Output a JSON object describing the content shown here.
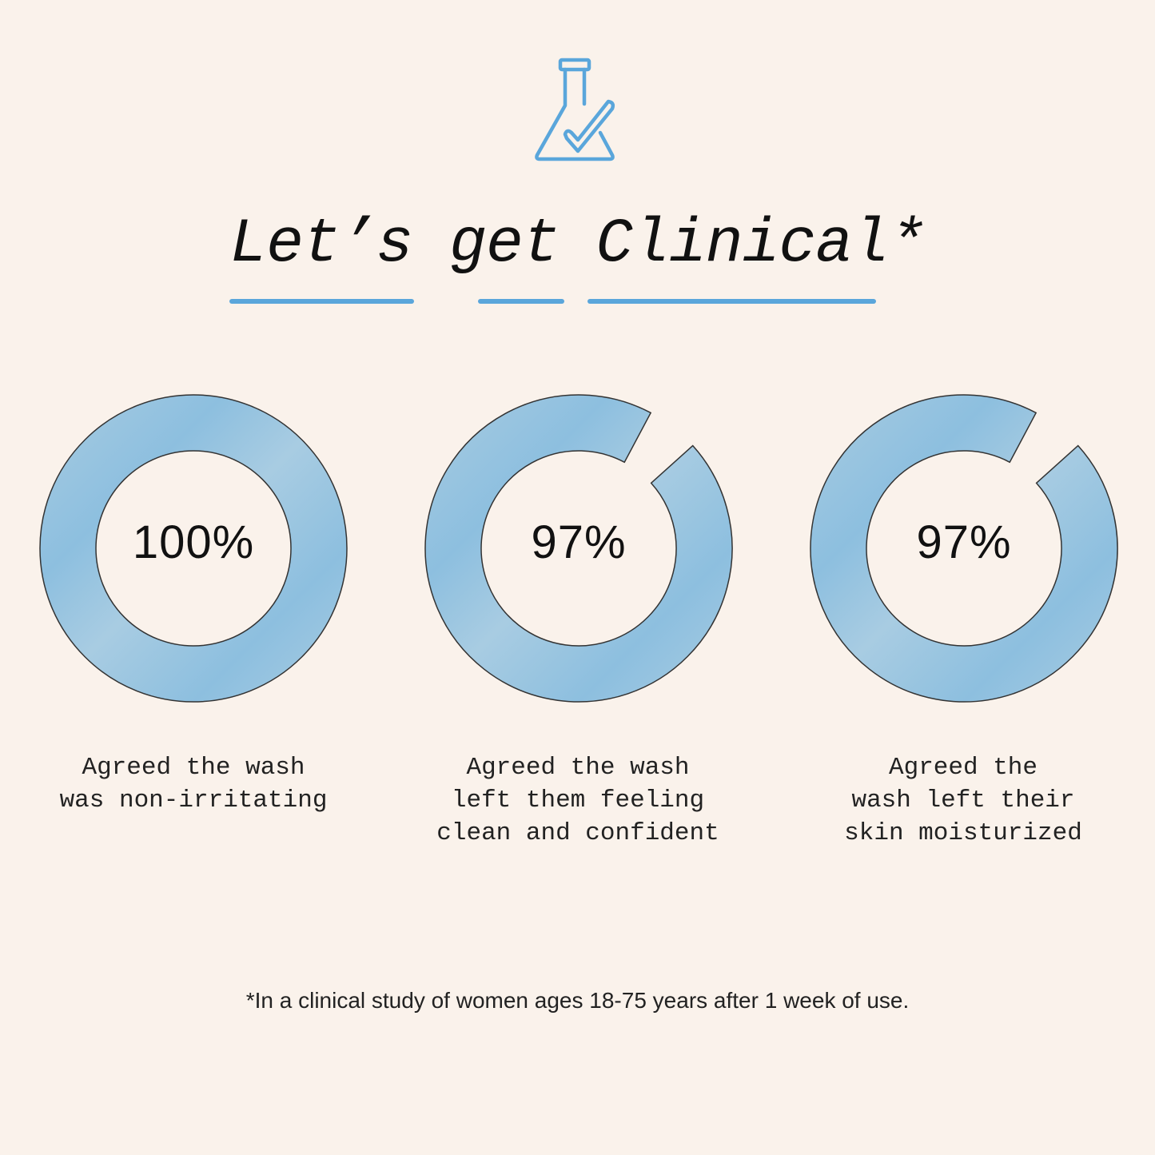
{
  "header": {
    "icon": "beaker-check-icon",
    "title": "Let’s get Clinical*"
  },
  "colors": {
    "background": "#faf2eb",
    "accent": "#5aa6db",
    "ring": "#a8cce2",
    "ring_dark": "#8dbfdf",
    "outline": "#333333"
  },
  "chart_data": [
    {
      "type": "pie",
      "style": "donut",
      "value": 100,
      "value_label": "100%",
      "caption": "Agreed the wash\nwas non-irritating"
    },
    {
      "type": "pie",
      "style": "donut",
      "value": 97,
      "value_label": "97%",
      "caption": "Agreed the wash\nleft them feeling\nclean and confident"
    },
    {
      "type": "pie",
      "style": "donut",
      "value": 97,
      "value_label": "97%",
      "caption": "Agreed the\nwash left their\nskin moisturized"
    }
  ],
  "footer": "*In a clinical study of women ages 18-75 years after 1 week of use."
}
